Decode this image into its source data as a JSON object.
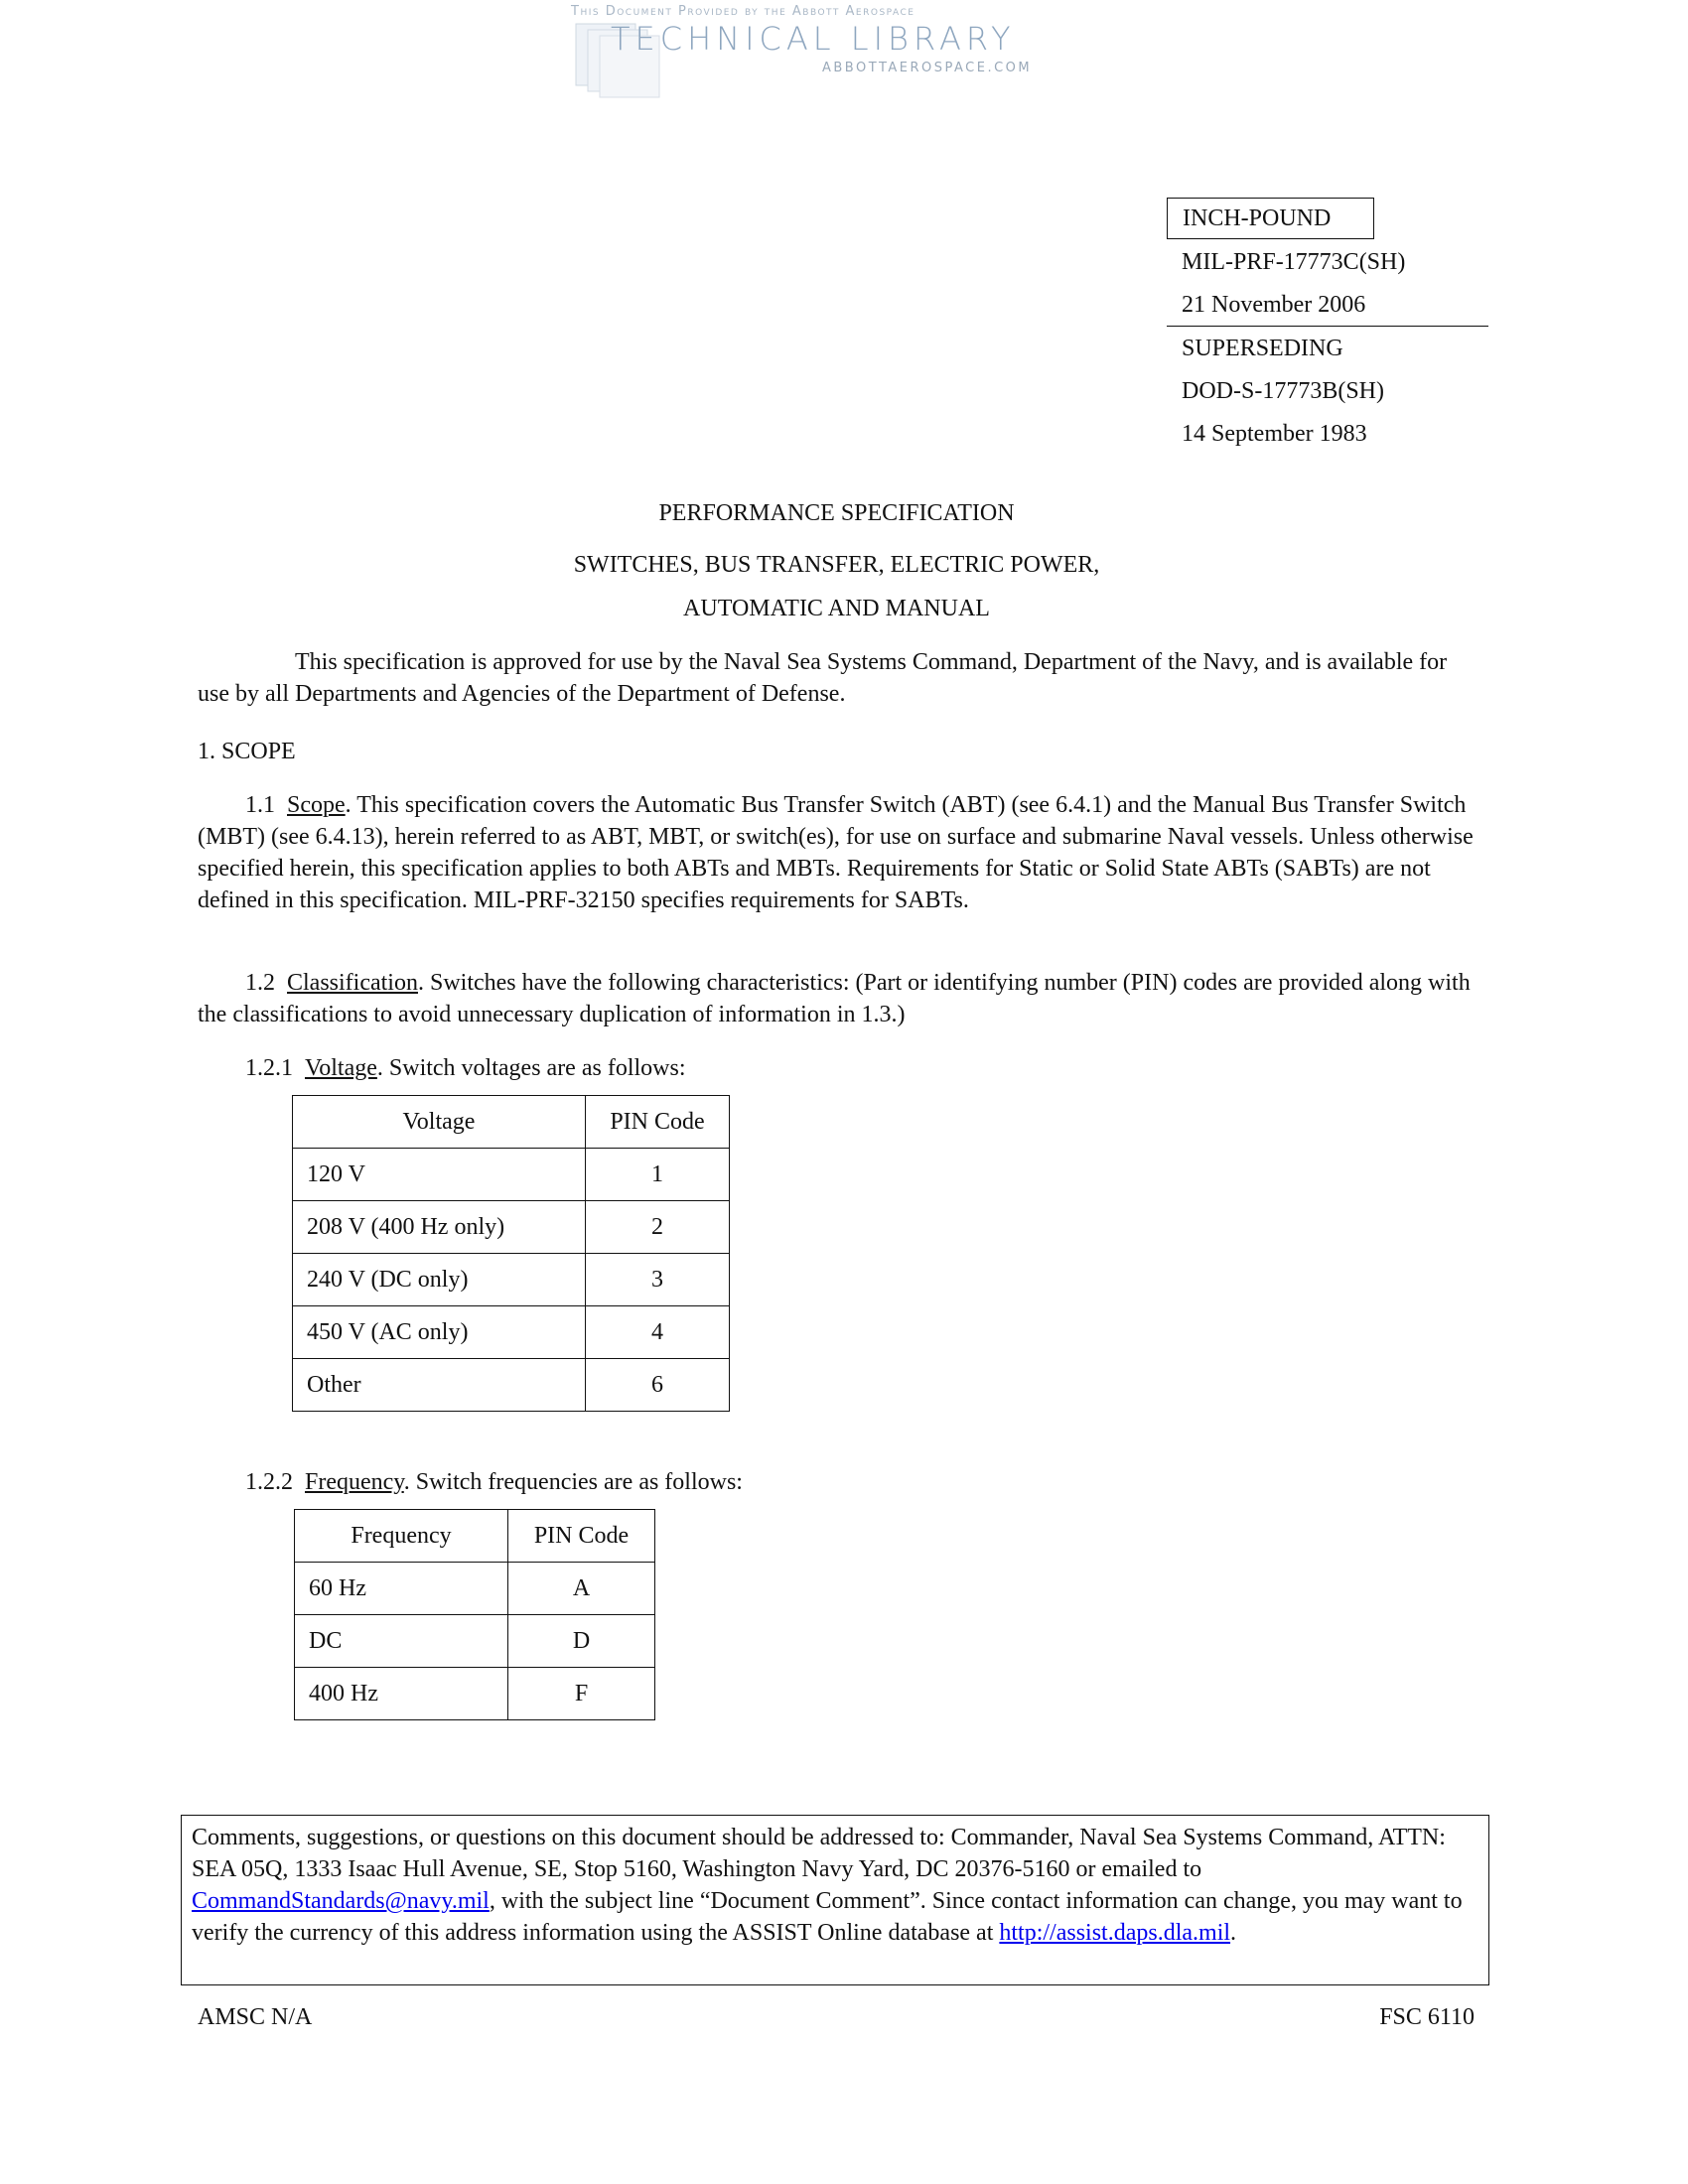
{
  "watermark": {
    "line1": "This Document Provided by the Abbott Aerospace",
    "line2": "TECHNICAL LIBRARY",
    "line3": "ABBOTTAEROSPACE.COM"
  },
  "header": {
    "type_box": "INCH-POUND",
    "doc_id": "MIL-PRF-17773C(SH)",
    "doc_date": "21 November 2006",
    "superseding_label": "SUPERSEDING",
    "superseded_id": "DOD-S-17773B(SH)",
    "superseded_date": "14 September 1983"
  },
  "title": {
    "line1": "PERFORMANCE SPECIFICATION",
    "line2": "SWITCHES, BUS TRANSFER, ELECTRIC POWER,",
    "line3": "AUTOMATIC AND MANUAL"
  },
  "approval": "This specification is approved for use by the Naval Sea Systems Command, Department of the Navy, and is available for use by all Departments and Agencies of the Department of Defense.",
  "section1": {
    "heading": "1.  SCOPE",
    "s11": {
      "num": "1.1",
      "title": "Scope",
      "text": ".  This specification covers the Automatic Bus Transfer Switch (ABT) (see 6.4.1) and the Manual Bus Transfer Switch (MBT) (see 6.4.13), herein referred to as ABT, MBT, or switch(es), for use on surface and submarine Naval vessels.  Unless otherwise specified herein, this specification applies to both ABTs and MBTs.  Requirements for Static or Solid State ABTs (SABTs) are not defined in this specification.  MIL-PRF-32150 specifies requirements for SABTs."
    },
    "s12": {
      "num": "1.2",
      "title": "Classification",
      "text": ".  Switches have the following characteristics:  (Part or identifying number (PIN) codes are provided along with the classifications to avoid unnecessary duplication of information in 1.3.)"
    },
    "s121": {
      "num": "1.2.1",
      "title": "Voltage",
      "text": ".  Switch voltages are as follows:",
      "headers": [
        "Voltage",
        "PIN Code"
      ],
      "rows": [
        [
          "120 V",
          "1"
        ],
        [
          "208 V (400 Hz only)",
          "2"
        ],
        [
          "240 V (DC only)",
          "3"
        ],
        [
          "450 V (AC only)",
          "4"
        ],
        [
          "Other",
          "6"
        ]
      ]
    },
    "s122": {
      "num": "1.2.2",
      "title": "Frequency",
      "text": ".  Switch frequencies are as follows:",
      "headers": [
        "Frequency",
        "PIN Code"
      ],
      "rows": [
        [
          "60 Hz",
          "A"
        ],
        [
          "DC",
          "D"
        ],
        [
          "400 Hz",
          "F"
        ]
      ]
    }
  },
  "comments": {
    "text1": "Comments, suggestions, or questions on this document should be addressed to: Commander, Naval Sea Systems Command, ATTN: SEA 05Q, 1333 Isaac Hull Avenue, SE, Stop 5160, Washington Navy Yard, DC  20376-5160 or emailed to ",
    "email": "CommandStandards@navy.mil",
    "text2": ", with the subject line “Document Comment”.  Since contact information can change, you may want to verify the currency of this address information using the ASSIST Online database at ",
    "url": "http://assist.daps.dla.mil",
    "text3": "."
  },
  "footer": {
    "amsc": "AMSC N/A",
    "fsc": "FSC 6110"
  },
  "colors": {
    "link": "#0000ee",
    "watermark": "#8ea6bf"
  }
}
